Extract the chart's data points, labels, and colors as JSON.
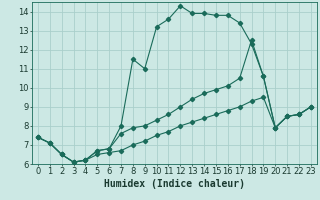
{
  "xlabel": "Humidex (Indice chaleur)",
  "bg_color": "#cce8e4",
  "grid_color": "#aacfcb",
  "line_color": "#1a6b5a",
  "xlim": [
    -0.5,
    23.5
  ],
  "ylim": [
    6,
    14.5
  ],
  "xticks": [
    0,
    1,
    2,
    3,
    4,
    5,
    6,
    7,
    8,
    9,
    10,
    11,
    12,
    13,
    14,
    15,
    16,
    17,
    18,
    19,
    20,
    21,
    22,
    23
  ],
  "yticks": [
    6,
    7,
    8,
    9,
    10,
    11,
    12,
    13,
    14
  ],
  "line1_x": [
    0,
    1,
    2,
    3,
    4,
    5,
    6,
    7,
    8,
    9,
    10,
    11,
    12,
    13,
    14,
    15,
    16,
    17,
    18,
    19,
    20,
    21,
    22,
    23
  ],
  "line1_y": [
    7.4,
    7.1,
    6.5,
    6.1,
    6.2,
    6.7,
    6.8,
    8.0,
    11.5,
    11.0,
    13.2,
    13.6,
    14.3,
    13.9,
    13.9,
    13.8,
    13.8,
    13.4,
    12.3,
    10.6,
    7.9,
    8.5,
    8.6,
    9.0
  ],
  "line2_x": [
    0,
    1,
    2,
    3,
    4,
    5,
    6,
    7,
    8,
    9,
    10,
    11,
    12,
    13,
    14,
    15,
    16,
    17,
    18,
    19,
    20,
    21,
    22,
    23
  ],
  "line2_y": [
    7.4,
    7.1,
    6.5,
    6.1,
    6.2,
    6.7,
    6.8,
    7.6,
    7.9,
    8.0,
    8.3,
    8.6,
    9.0,
    9.4,
    9.7,
    9.9,
    10.1,
    10.5,
    12.5,
    10.6,
    7.9,
    8.5,
    8.6,
    9.0
  ],
  "line3_x": [
    0,
    1,
    2,
    3,
    4,
    5,
    6,
    7,
    8,
    9,
    10,
    11,
    12,
    13,
    14,
    15,
    16,
    17,
    18,
    19,
    20,
    21,
    22,
    23
  ],
  "line3_y": [
    7.4,
    7.1,
    6.5,
    6.1,
    6.2,
    6.5,
    6.6,
    6.7,
    7.0,
    7.2,
    7.5,
    7.7,
    8.0,
    8.2,
    8.4,
    8.6,
    8.8,
    9.0,
    9.3,
    9.5,
    7.9,
    8.5,
    8.6,
    9.0
  ],
  "xlabel_fontsize": 7,
  "tick_fontsize": 6,
  "marker": "D",
  "markersize": 2.2,
  "linewidth": 0.8
}
